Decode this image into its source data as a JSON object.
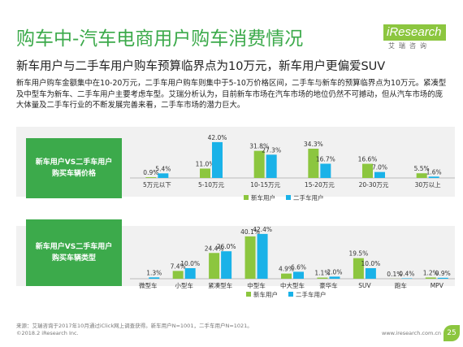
{
  "header": {
    "title": "购车中-汽车电商用户购车消费情况",
    "logo_text": "iResearch",
    "logo_cn": "艾瑞咨询"
  },
  "subtitle": "新车用户与二手车用户购车预算临界点为10万元，新车用户更偏爱SUV",
  "body_text": "新车用户购车金额集中在10-20万元，二手车用户购车则集中于5-10万价格区间，二手车与新车的预算临界点为10万元。紧凑型及中型车为新车、二手车用户主要考虑车型。艾瑞分析认为，目前新车市场在汽车市场的地位仍然不可撼动，但从汽车市场的庞大体量及二手车行业的不断发展完善来看，二手车市场的潜力巨大。",
  "colors": {
    "green": "#3caa4b",
    "new": "#8cc63f",
    "used": "#1ab2e8",
    "band": "#f1f1f1"
  },
  "charts": {
    "price": {
      "label": "新车用户VS二手车用户购买车辆价格"
    },
    "type": {
      "label": "新车用户VS二手车用户购买车辆类型"
    }
  },
  "legend": {
    "new": "新车用户",
    "used": "二手车用户"
  },
  "chart_data": [
    {
      "type": "bar",
      "title": "新车用户VS二手车用户购买车辆价格",
      "categories": [
        "5万元以下",
        "5-10万元",
        "10-15万元",
        "15-20万元",
        "20-30万元",
        "30万以上"
      ],
      "series": [
        {
          "name": "新车用户",
          "values": [
            0.9,
            11.0,
            31.8,
            34.3,
            16.6,
            5.5
          ]
        },
        {
          "name": "二手车用户",
          "values": [
            5.4,
            42.0,
            27.3,
            16.7,
            7.0,
            1.6
          ]
        }
      ],
      "unit": "%",
      "legend": "bottom"
    },
    {
      "type": "bar",
      "title": "新车用户VS二手车用户购买车辆类型",
      "categories": [
        "微型车",
        "小型车",
        "紧凑型车",
        "中型车",
        "中大型车",
        "豪华车",
        "SUV",
        "跑车",
        "MPV"
      ],
      "series": [
        {
          "name": "新车用户",
          "values": [
            0.0,
            7.4,
            24.4,
            40.1,
            4.9,
            1.1,
            19.5,
            0.1,
            1.2
          ]
        },
        {
          "name": "二手车用户",
          "values": [
            1.3,
            10.0,
            26.0,
            42.4,
            6.6,
            2.0,
            10.0,
            0.4,
            0.9
          ]
        }
      ],
      "labels": [
        [
          null,
          "7.4%",
          "24.4%",
          "40.1%",
          "4.9%",
          "1.1%",
          "19.5%",
          "0.1%",
          "1.2%"
        ],
        [
          "1.3%",
          "10.0%",
          "26.0%",
          "42.4%",
          "6.6%",
          "2.0%",
          "10.0%",
          "0.4%",
          "0.9%"
        ]
      ],
      "unit": "%",
      "legend": "bottom"
    }
  ],
  "footer": {
    "source": "来源：艾瑞咨询于2017年10月通过iClick网上调查获得。新车用户N=1001，二手车用户N=1021。",
    "copyright": "©2018.2 iResearch Inc.",
    "website": "www.iresearch.com.cn",
    "page_number": "25"
  }
}
